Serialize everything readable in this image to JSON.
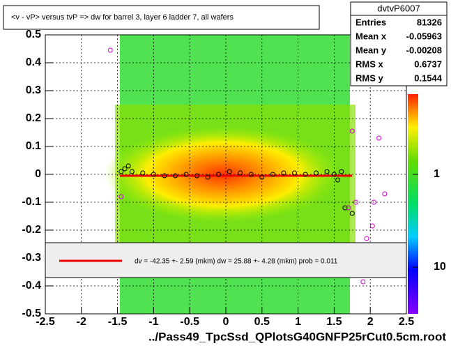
{
  "chart_data": {
    "type": "scatter",
    "title": "<v - vP>       versus  tvP =>  dw for barrel 3, layer 6 ladder 7, all wafers",
    "x_label": "../Pass49_TpcSsd_QPlotsG40GNFP25rCut0.5cm.root",
    "xlim": [
      -2.5,
      2.5
    ],
    "xticks": [
      -2.5,
      -2,
      -1.5,
      -1,
      -0.5,
      0,
      0.5,
      1,
      1.5,
      2,
      2.5
    ],
    "ylim": [
      -0.5,
      0.5
    ],
    "yticks": [
      -0.5,
      -0.4,
      -0.3,
      -0.2,
      -0.1,
      0,
      0.1,
      0.2,
      0.3,
      0.4,
      0.5
    ],
    "grid": true,
    "z_scale": "log",
    "zticks": [
      1,
      10
    ],
    "series": [
      {
        "color": "#000000",
        "x": [
          -1.45,
          -1.4,
          -1.35,
          -1.3,
          -1.15,
          -1.0,
          -0.85,
          -0.7,
          -0.55,
          -0.4,
          -0.25,
          -0.1,
          0.05,
          0.2,
          0.35,
          0.5,
          0.65,
          0.8,
          0.95,
          1.1,
          1.25,
          1.4,
          1.5,
          1.55,
          1.6,
          1.65,
          1.75
        ],
        "y": [
          0.01,
          0.02,
          0.03,
          0.01,
          0.005,
          0.0,
          -0.005,
          -0.005,
          0.0,
          -0.005,
          -0.01,
          0.0,
          0.01,
          0.005,
          0.0,
          -0.01,
          0.0,
          0.005,
          0.005,
          0.0,
          0.005,
          0.01,
          0.0,
          -0.02,
          0.01,
          -0.12,
          -0.14
        ]
      },
      {
        "color": "#cc00cc",
        "x": [
          -1.6,
          -1.45,
          1.75,
          2.12,
          1.7,
          1.8,
          2.05,
          2.2,
          1.95,
          2.03,
          1.9
        ],
        "y": [
          0.445,
          -0.08,
          0.155,
          0.13,
          -0.12,
          -0.1,
          -0.1,
          -0.07,
          -0.23,
          -0.185,
          -0.385
        ]
      }
    ],
    "fit_text": "dv =  -42.35 +-  2.59 (mkm) dw =   25.88 +-  4.28 (mkm) prob = 0.011",
    "stats": {
      "title": "dvtvP6007",
      "rows": [
        {
          "label": "Entries",
          "value": 81326
        },
        {
          "label": "Mean x",
          "value": -0.05963
        },
        {
          "label": "Mean y",
          "value": -0.00208
        },
        {
          "label": "RMS x",
          "value": 0.6737
        },
        {
          "label": "RMS y",
          "value": 0.1544
        }
      ]
    }
  }
}
